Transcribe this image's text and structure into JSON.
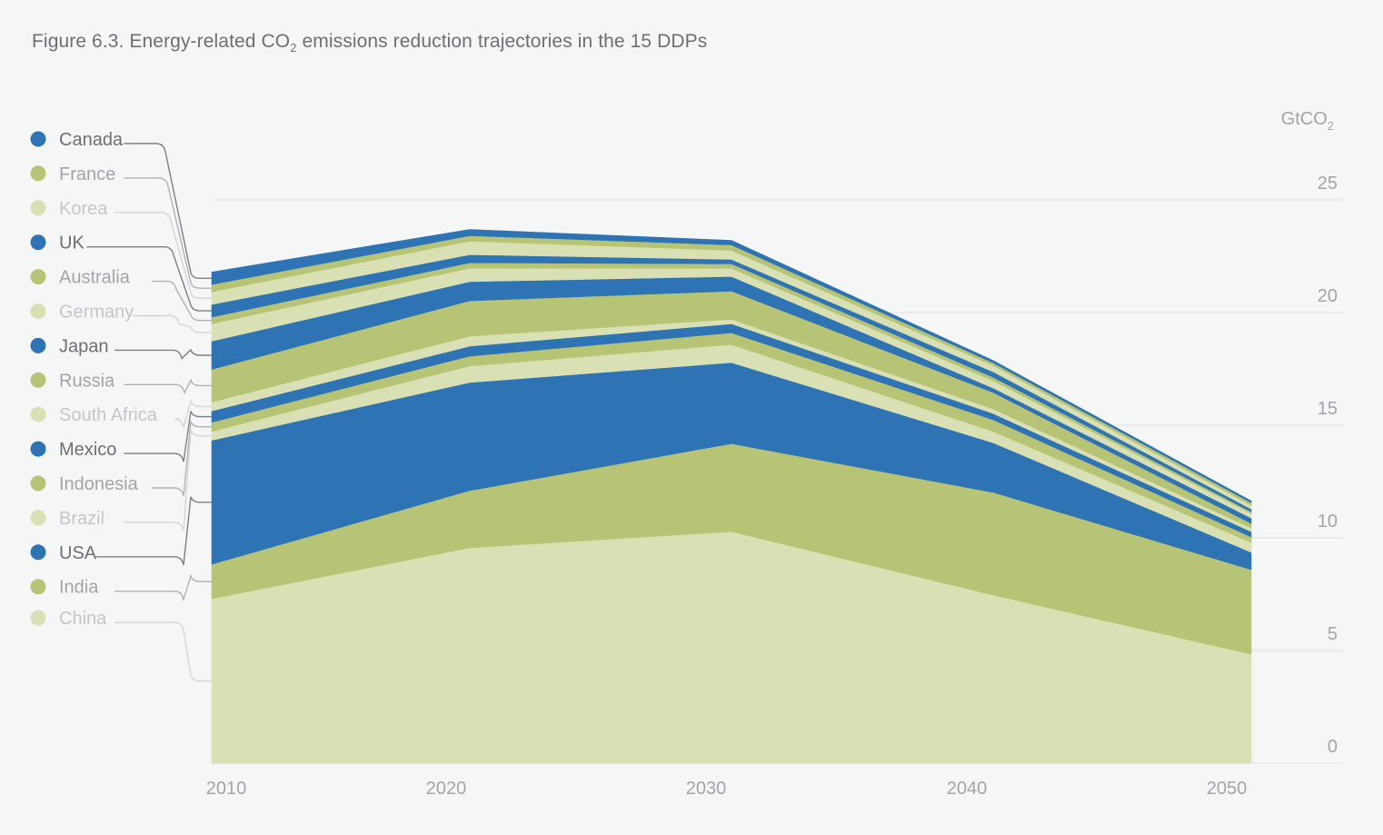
{
  "chart_data": {
    "type": "area",
    "stacked": true,
    "title": "Figure 6.3. Energy-related CO2 emissions reduction trajectories in the 15 DDPs",
    "title_parts": {
      "before": "Figure 6.3. Energy-related CO",
      "sub": "2",
      "after": " emissions reduction trajectories in the 15 DDPs"
    },
    "ylabel": "GtCO2",
    "ylabel_parts": {
      "main": "GtCO",
      "sub": "2"
    },
    "xlabel": "",
    "x": [
      2010,
      2020,
      2030,
      2040,
      2050
    ],
    "x_tick_labels": [
      "2010",
      "2020",
      "2030",
      "2040",
      "2050"
    ],
    "y_ticks": [
      0,
      5,
      10,
      15,
      20,
      25
    ],
    "y_tick_labels": [
      "0",
      "5",
      "10",
      "15",
      "20",
      "25"
    ],
    "ylim": [
      0,
      25
    ],
    "grid": true,
    "y_axis_side": "right",
    "legend_position": "left",
    "series": [
      {
        "name": "China",
        "color": "#d9e0b3",
        "values": [
          7.3,
          9.56,
          10.28,
          7.46,
          4.84
        ]
      },
      {
        "name": "India",
        "color": "#b8c475",
        "values": [
          1.53,
          2.54,
          3.9,
          4.56,
          3.75
        ]
      },
      {
        "name": "USA",
        "color": "#2e74b5",
        "values": [
          5.5,
          4.8,
          3.6,
          2.2,
          0.77
        ]
      },
      {
        "name": "Brazil",
        "color": "#d9e0b3",
        "values": [
          0.4,
          0.73,
          0.8,
          0.5,
          0.44
        ]
      },
      {
        "name": "Indonesia",
        "color": "#b8c475",
        "values": [
          0.4,
          0.44,
          0.52,
          0.52,
          0.24
        ]
      },
      {
        "name": "Mexico",
        "color": "#2e74b5",
        "values": [
          0.5,
          0.44,
          0.4,
          0.28,
          0.24
        ]
      },
      {
        "name": "South Africa",
        "color": "#d9e0b3",
        "values": [
          0.4,
          0.44,
          0.2,
          0.2,
          0.16
        ]
      },
      {
        "name": "Russia",
        "color": "#b8c475",
        "values": [
          1.45,
          1.57,
          1.25,
          0.73,
          0.2
        ]
      },
      {
        "name": "Japan",
        "color": "#2e74b5",
        "values": [
          1.25,
          0.85,
          0.65,
          0.2,
          0.24
        ]
      },
      {
        "name": "Germany",
        "color": "#d9e0b3",
        "values": [
          0.77,
          0.6,
          0.36,
          0.32,
          0.2
        ]
      },
      {
        "name": "Australia",
        "color": "#b8c475",
        "values": [
          0.3,
          0.24,
          0.2,
          0.16,
          0.08
        ]
      },
      {
        "name": "UK",
        "color": "#2e74b5",
        "values": [
          0.56,
          0.36,
          0.2,
          0.24,
          0.12
        ]
      },
      {
        "name": "Korea",
        "color": "#d9e0b3",
        "values": [
          0.56,
          0.6,
          0.4,
          0.28,
          0.16
        ]
      },
      {
        "name": "France",
        "color": "#b8c475",
        "values": [
          0.32,
          0.24,
          0.24,
          0.12,
          0.12
        ]
      },
      {
        "name": "Canada",
        "color": "#2e74b5",
        "values": [
          0.56,
          0.28,
          0.2,
          0.1,
          0.08
        ]
      }
    ],
    "legend_order": [
      "Canada",
      "France",
      "Korea",
      "UK",
      "Australia",
      "Germany",
      "Japan",
      "Russia",
      "South Africa",
      "Mexico",
      "Indonesia",
      "Brazil",
      "USA",
      "India",
      "China"
    ]
  },
  "colors": {
    "background": "#f5f6f6",
    "gridline": "#e6e8e8",
    "tick_text": "#a2a4a7",
    "title_text": "#6e6f72",
    "legend_text_dark": "#6e6f72",
    "legend_text_mid": "#a2a4a7",
    "legend_text_light": "#c4c6c8"
  }
}
